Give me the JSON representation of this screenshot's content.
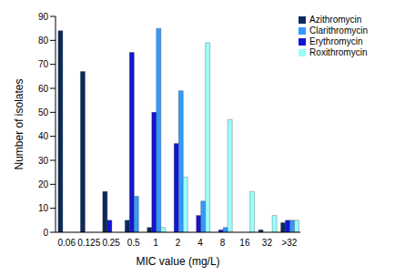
{
  "chart_data": {
    "type": "bar",
    "x_label": "MIC value (mg/L)",
    "y_label": "Number of isolates",
    "categories": [
      "0.06",
      "0.125",
      "0.25",
      "0.5",
      "1",
      "2",
      "4",
      "8",
      "16",
      "32",
      ">32"
    ],
    "series": [
      {
        "name": "Azithromycin",
        "color": "#0b2a5c",
        "values": [
          84,
          67,
          17,
          5,
          2,
          0,
          0,
          0,
          0,
          1,
          4
        ]
      },
      {
        "name": "Erythromycin",
        "color": "#1414d2",
        "values": [
          0,
          0,
          5,
          75,
          50,
          37,
          7,
          1,
          0,
          0,
          5
        ]
      },
      {
        "name": "Clarithromycin",
        "color": "#3399ff",
        "values": [
          0,
          0,
          0,
          15,
          85,
          59,
          13,
          2,
          0,
          0,
          5
        ]
      },
      {
        "name": "Roxithromycin",
        "color": "#99ffff",
        "values": [
          0,
          0,
          0,
          0,
          2,
          23,
          79,
          47,
          17,
          7,
          5
        ]
      }
    ],
    "ylim": [
      0,
      90
    ],
    "yticks": [
      0,
      10,
      20,
      30,
      40,
      50,
      60,
      70,
      80,
      90
    ],
    "grid": false,
    "legend": "upper right"
  }
}
